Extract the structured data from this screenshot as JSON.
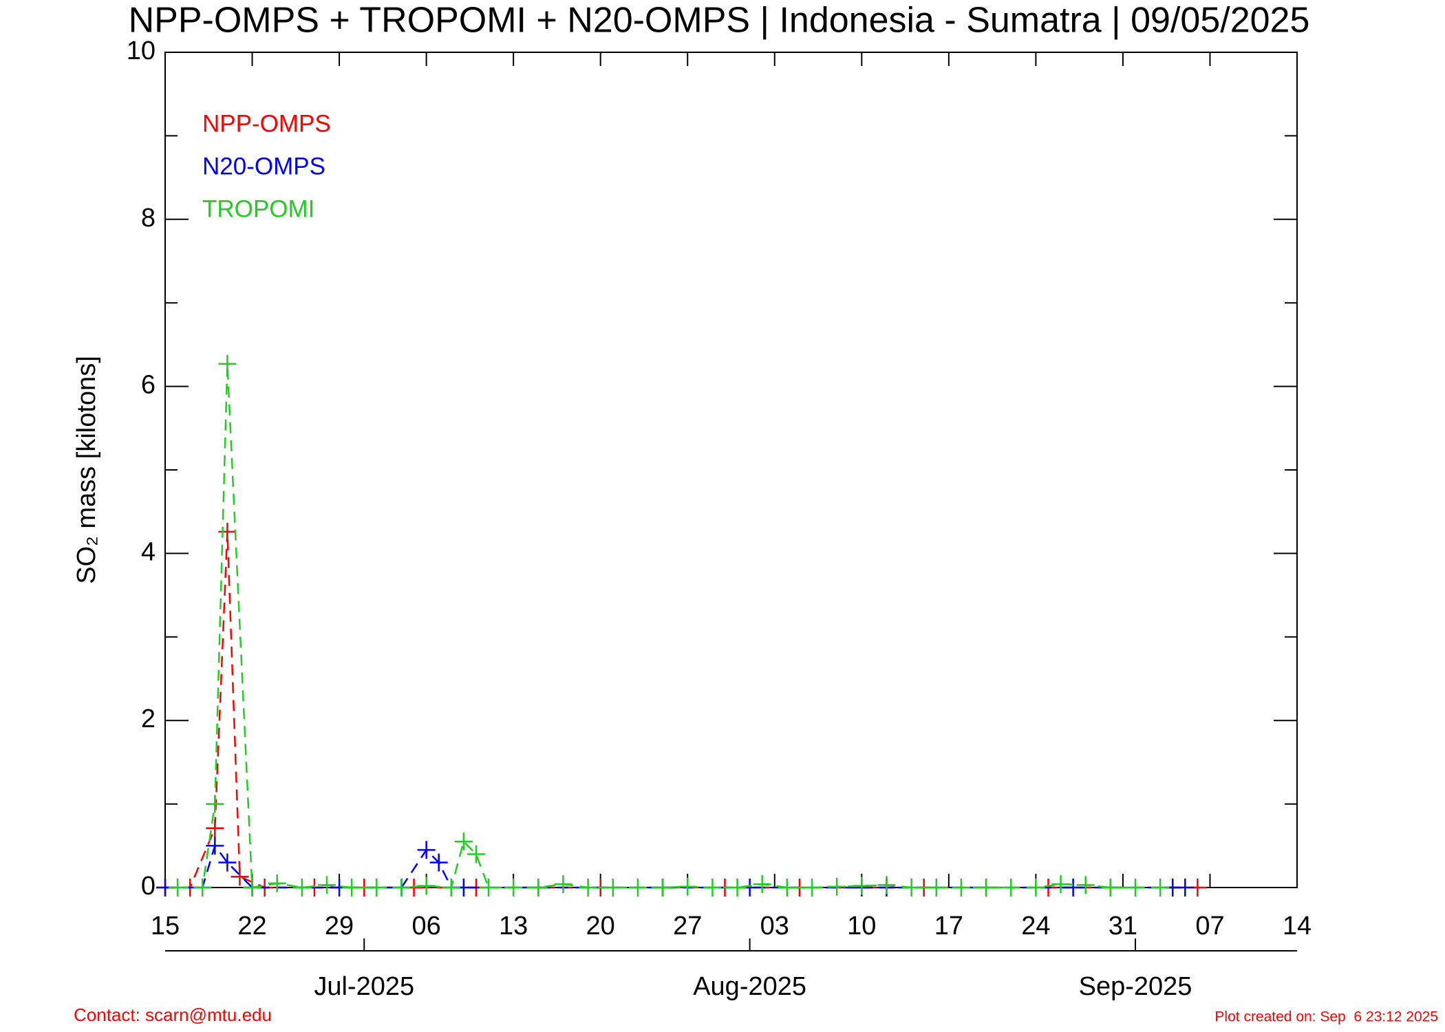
{
  "chart_data": {
    "type": "line",
    "title": "NPP-OMPS + TROPOMI + N20-OMPS | Indonesia - Sumatra | 09/05/2025",
    "y_label": "SO₂ mass [kilotons]",
    "footer_left": "Contact: scarn@mtu.edu",
    "footer_right": "Plot created on: Sep  6 23:12 2025",
    "xlim": [
      "2025-06-15",
      "2025-09-14"
    ],
    "xticks": [
      {
        "value": "2025-06-15",
        "label": "15"
      },
      {
        "value": "2025-06-22",
        "label": "22"
      },
      {
        "value": "2025-06-29",
        "label": "29"
      },
      {
        "value": "2025-07-06",
        "label": "06"
      },
      {
        "value": "2025-07-13",
        "label": "13"
      },
      {
        "value": "2025-07-20",
        "label": "20"
      },
      {
        "value": "2025-07-27",
        "label": "27"
      },
      {
        "value": "2025-08-03",
        "label": "03"
      },
      {
        "value": "2025-08-10",
        "label": "10"
      },
      {
        "value": "2025-08-17",
        "label": "17"
      },
      {
        "value": "2025-08-24",
        "label": "24"
      },
      {
        "value": "2025-08-31",
        "label": "31"
      },
      {
        "value": "2025-09-07",
        "label": "07"
      },
      {
        "value": "2025-09-14",
        "label": "14"
      }
    ],
    "month_ticks": [
      {
        "value": "2025-07-01",
        "label": "Jul-2025"
      },
      {
        "value": "2025-08-01",
        "label": "Aug-2025"
      },
      {
        "value": "2025-09-01",
        "label": "Sep-2025"
      }
    ],
    "ylim": [
      0,
      10
    ],
    "yticks": [
      0,
      2,
      4,
      6,
      8,
      10
    ],
    "series": [
      {
        "name": "NPP-OMPS",
        "color": "#ff0000",
        "x": [
          "2025-06-15",
          "2025-06-17",
          "2025-06-19",
          "2025-06-20",
          "2025-06-21",
          "2025-06-23",
          "2025-06-27",
          "2025-07-01",
          "2025-07-05",
          "2025-07-10",
          "2025-07-15",
          "2025-07-20",
          "2025-07-25",
          "2025-07-30",
          "2025-08-05",
          "2025-08-10",
          "2025-08-15",
          "2025-08-20",
          "2025-08-25",
          "2025-08-30",
          "2025-09-04",
          "2025-09-06"
        ],
        "values": [
          0,
          0,
          0.71,
          4.26,
          0.13,
          0,
          0,
          0,
          0,
          0,
          0,
          0,
          0,
          0,
          0,
          0,
          0,
          0,
          0,
          0,
          0,
          0
        ]
      },
      {
        "name": "N20-OMPS",
        "color": "#0000ff",
        "x": [
          "2025-06-15",
          "2025-06-18",
          "2025-06-19",
          "2025-06-20",
          "2025-06-22",
          "2025-06-29",
          "2025-07-04",
          "2025-07-06",
          "2025-07-07",
          "2025-07-08",
          "2025-07-09",
          "2025-07-15",
          "2025-07-25",
          "2025-08-01",
          "2025-08-10",
          "2025-08-12",
          "2025-08-27",
          "2025-09-04",
          "2025-09-05"
        ],
        "values": [
          0,
          0,
          0.5,
          0.3,
          0,
          0,
          0,
          0.45,
          0.3,
          0,
          0,
          0,
          0,
          0,
          0,
          0,
          0,
          0,
          0
        ]
      },
      {
        "name": "TROPOMI",
        "color": "#22cc22",
        "x": [
          "2025-06-16",
          "2025-06-18",
          "2025-06-19",
          "2025-06-20",
          "2025-06-22",
          "2025-06-24",
          "2025-06-26",
          "2025-06-28",
          "2025-06-30",
          "2025-07-02",
          "2025-07-04",
          "2025-07-06",
          "2025-07-08",
          "2025-07-09",
          "2025-07-10",
          "2025-07-11",
          "2025-07-13",
          "2025-07-15",
          "2025-07-17",
          "2025-07-19",
          "2025-07-21",
          "2025-07-23",
          "2025-07-25",
          "2025-07-27",
          "2025-07-29",
          "2025-07-31",
          "2025-08-02",
          "2025-08-04",
          "2025-08-06",
          "2025-08-08",
          "2025-08-10",
          "2025-08-12",
          "2025-08-14",
          "2025-08-16",
          "2025-08-18",
          "2025-08-20",
          "2025-08-22",
          "2025-08-24",
          "2025-08-26",
          "2025-08-28",
          "2025-08-30",
          "2025-09-01",
          "2025-09-03"
        ],
        "values": [
          0,
          0,
          1.0,
          6.27,
          0,
          0.05,
          0,
          0.03,
          0,
          0,
          0,
          0.02,
          0,
          0.55,
          0.4,
          0,
          0,
          0,
          0.04,
          0,
          0,
          0,
          0,
          0.01,
          0,
          0,
          0.04,
          0,
          0,
          0.01,
          0.02,
          0.03,
          0,
          0,
          0,
          0,
          0,
          0,
          0.04,
          0.03,
          0,
          0,
          0
        ]
      }
    ]
  }
}
